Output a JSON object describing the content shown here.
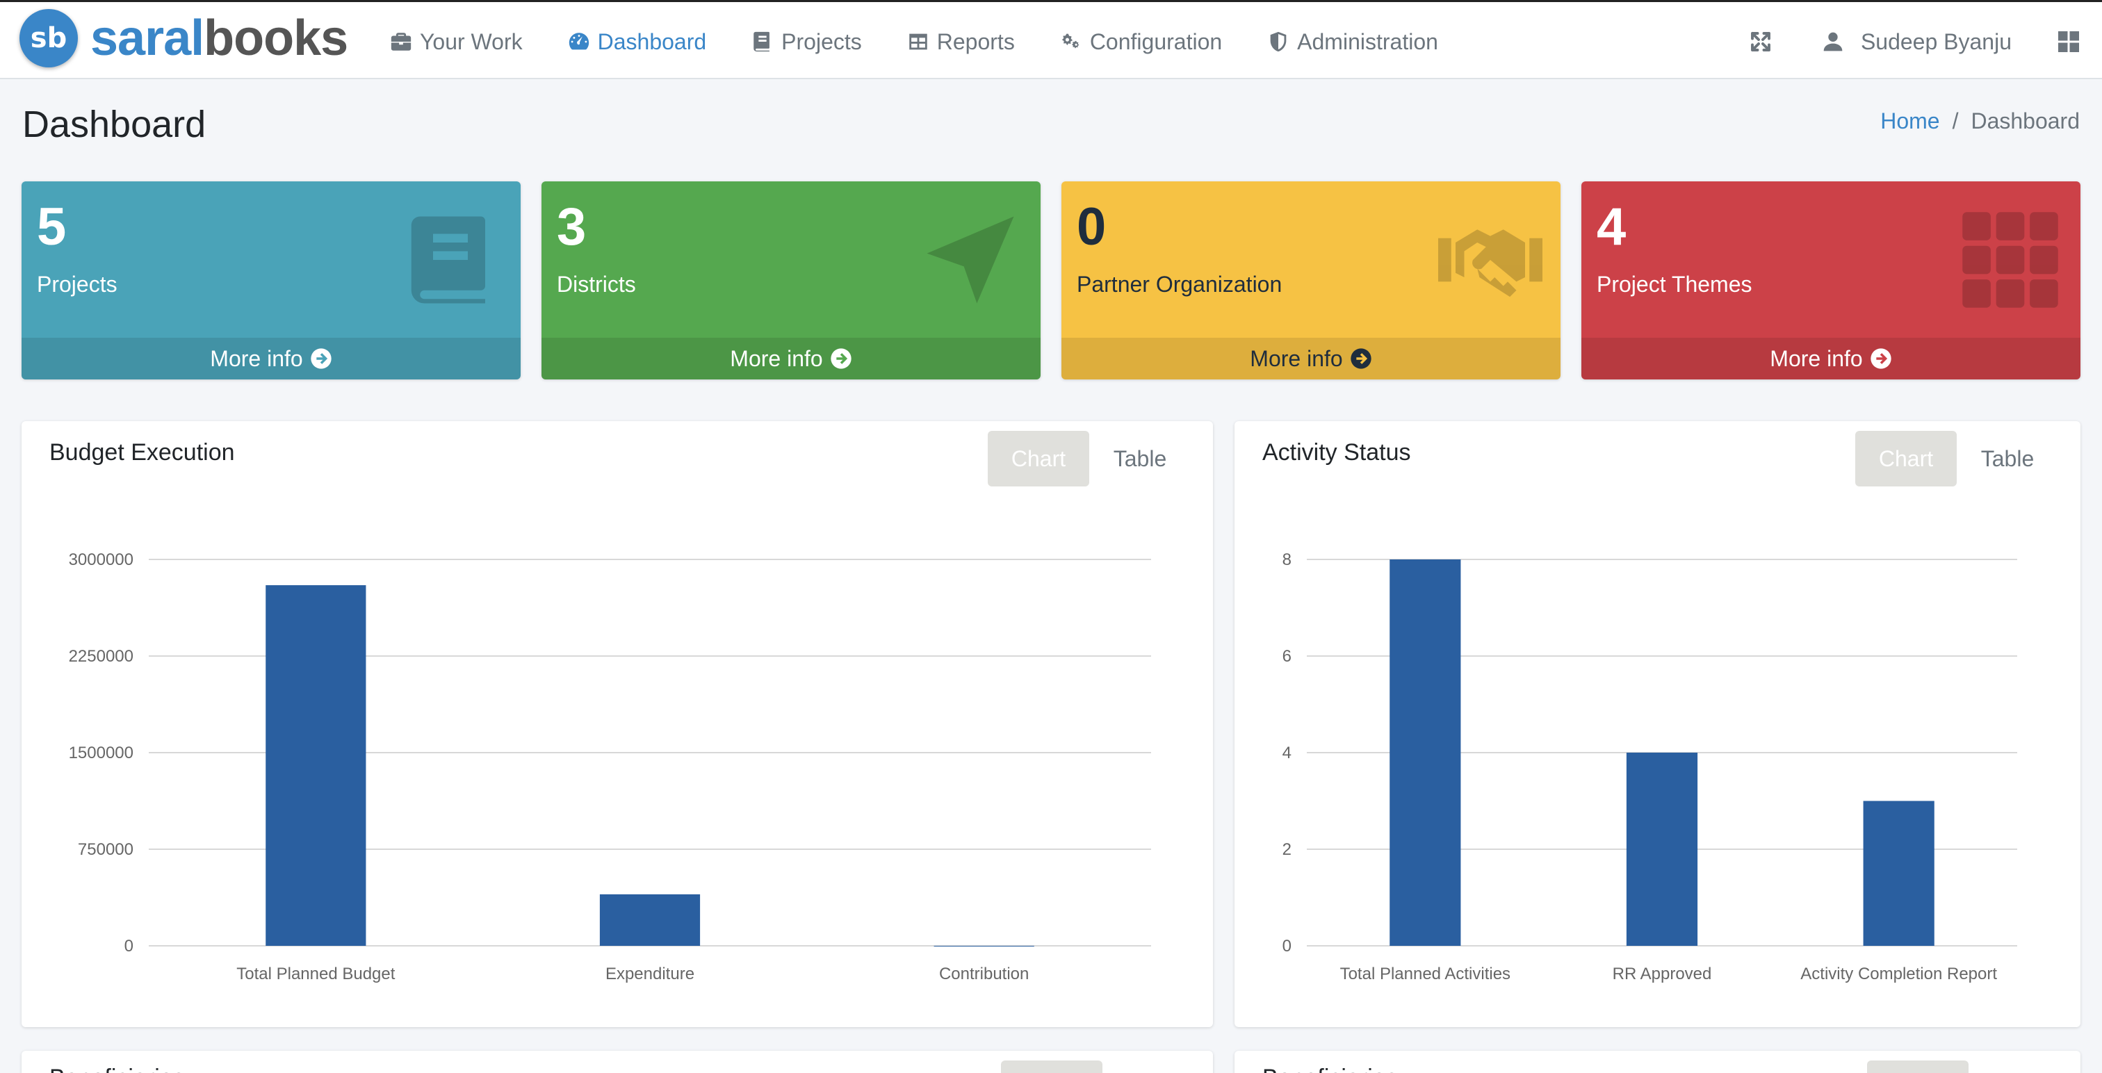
{
  "brand": {
    "logo_text": "sb",
    "name_part1": "saral",
    "name_part2": "books",
    "color": "#3a86c8"
  },
  "nav": {
    "items": [
      {
        "label": "Your Work",
        "icon": "briefcase-icon",
        "active": false
      },
      {
        "label": "Dashboard",
        "icon": "tachometer-icon",
        "active": true
      },
      {
        "label": "Projects",
        "icon": "book-icon",
        "active": false
      },
      {
        "label": "Reports",
        "icon": "table-icon",
        "active": false
      },
      {
        "label": "Configuration",
        "icon": "gears-icon",
        "active": false
      },
      {
        "label": "Administration",
        "icon": "shield-icon",
        "active": false
      }
    ],
    "user_name": "Sudeep Byanju"
  },
  "header": {
    "title": "Dashboard",
    "breadcrumb": {
      "home": "Home",
      "separator": "/",
      "current": "Dashboard"
    }
  },
  "boxes": [
    {
      "number": "5",
      "label": "Projects",
      "footer": "More info",
      "icon": "book-icon",
      "color": "#4aa3b8"
    },
    {
      "number": "3",
      "label": "Districts",
      "footer": "More info",
      "icon": "location-arrow-icon",
      "color": "#55a84f"
    },
    {
      "number": "0",
      "label": "Partner Organization",
      "footer": "More info",
      "icon": "handshake-icon",
      "color": "#f6c244"
    },
    {
      "number": "4",
      "label": "Project Themes",
      "footer": "More info",
      "icon": "grid-icon",
      "color": "#cc4148"
    }
  ],
  "cards": {
    "budget": {
      "title": "Budget Execution",
      "tab_chart": "Chart",
      "tab_table": "Table"
    },
    "activity": {
      "title": "Activity Status",
      "tab_chart": "Chart",
      "tab_table": "Table"
    },
    "bottom_left_title": "Beneficiaries",
    "bottom_right_title": "Beneficiaries"
  },
  "chart_data": [
    {
      "type": "bar",
      "title": "Budget Execution",
      "categories": [
        "Total Planned Budget",
        "Expenditure",
        "Contribution"
      ],
      "values": [
        2800000,
        400000,
        0
      ],
      "ylim": [
        0,
        3000000
      ],
      "yticks": [
        "0",
        "750000",
        "1500000",
        "2250000",
        "3000000"
      ],
      "grid": true,
      "bar_color": "#2a5fa0"
    },
    {
      "type": "bar",
      "title": "Activity Status",
      "categories": [
        "Total Planned Activities",
        "RR Approved",
        "Activity Completion Report"
      ],
      "values": [
        8,
        4,
        3
      ],
      "ylim": [
        0,
        8
      ],
      "yticks": [
        "0",
        "2",
        "4",
        "6",
        "8"
      ],
      "grid": true,
      "bar_color": "#2a5fa0"
    }
  ]
}
